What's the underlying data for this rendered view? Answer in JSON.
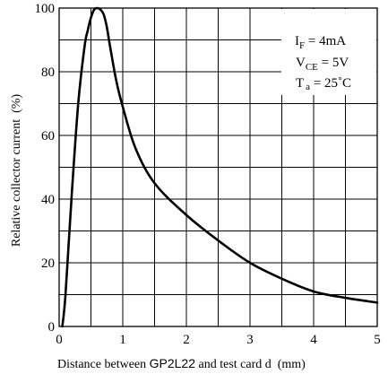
{
  "chart_data": {
    "type": "line",
    "title": "",
    "xlabel_prefix": "Distance between ",
    "xlabel_device": "GP2L22",
    "xlabel_suffix": " and test card d  (mm)",
    "ylabel": "Relative collector current  (%)",
    "xlim": [
      0,
      5
    ],
    "ylim": [
      0,
      100
    ],
    "x_ticks": [
      0,
      1,
      2,
      3,
      4,
      5
    ],
    "y_ticks": [
      0,
      20,
      40,
      60,
      80,
      100
    ],
    "x_tick_labels": [
      "0",
      "1",
      "2",
      "3",
      "4",
      "5"
    ],
    "y_tick_labels": [
      "0",
      "20",
      "40",
      "60",
      "80",
      "100"
    ],
    "grid": true,
    "series": [
      {
        "x": [
          0.05,
          0.1,
          0.2,
          0.3,
          0.4,
          0.45,
          0.5,
          0.55,
          0.6,
          0.65,
          0.7,
          0.75,
          0.8,
          0.9,
          1.0,
          1.2,
          1.5,
          2.0,
          2.5,
          3.0,
          3.5,
          4.0,
          4.5,
          5.0
        ],
        "y": [
          0,
          10,
          42,
          70,
          88,
          93,
          97,
          99.5,
          100,
          99.5,
          98,
          94,
          88,
          77,
          69,
          56,
          45,
          35,
          27,
          20,
          15,
          11,
          9,
          7.5
        ]
      }
    ],
    "legend_box": {
      "if_label": "I",
      "if_sub": "F",
      "if_value": " = 4mA",
      "vce_label": "V",
      "vce_sub": "CE",
      "vce_value": " = 5V",
      "ta_label": "T",
      "ta_sub": "a",
      "ta_value": " = 25˚C"
    }
  }
}
